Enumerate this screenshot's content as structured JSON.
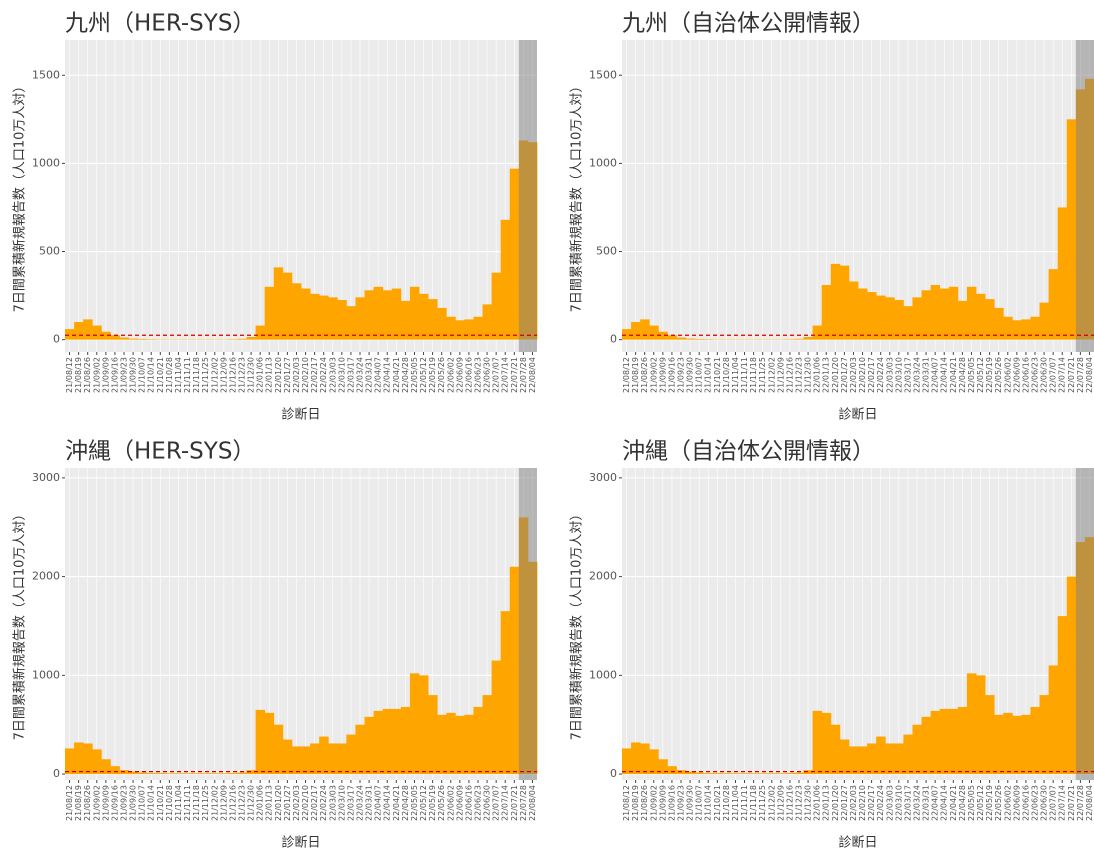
{
  "chart_data": [
    {
      "type": "area",
      "title": "九州（HER-SYS）",
      "xlabel": "診断日",
      "ylabel": "7日間累積新規報告数（人口10万人対）",
      "categories": [
        "21/08/12",
        "21/08/19",
        "21/08/26",
        "21/09/02",
        "21/09/09",
        "21/09/16",
        "21/09/23",
        "21/09/30",
        "21/10/07",
        "21/10/14",
        "21/10/21",
        "21/10/28",
        "21/11/04",
        "21/11/11",
        "21/11/18",
        "21/11/25",
        "21/12/02",
        "21/12/09",
        "21/12/16",
        "21/12/23",
        "21/12/30",
        "22/01/06",
        "22/01/13",
        "22/01/20",
        "22/01/27",
        "22/02/03",
        "22/02/10",
        "22/02/17",
        "22/02/24",
        "22/03/03",
        "22/03/10",
        "22/03/17",
        "22/03/24",
        "22/03/31",
        "22/04/07",
        "22/04/14",
        "22/04/21",
        "22/04/28",
        "22/05/05",
        "22/05/12",
        "22/05/19",
        "22/05/26",
        "22/06/02",
        "22/06/09",
        "22/06/16",
        "22/06/23",
        "22/06/30",
        "22/07/07",
        "22/07/14",
        "22/07/21",
        "22/07/28",
        "22/08/04"
      ],
      "values": [
        60,
        100,
        115,
        80,
        45,
        25,
        12,
        6,
        4,
        3,
        2,
        2,
        2,
        2,
        2,
        2,
        2,
        2,
        3,
        5,
        15,
        80,
        300,
        410,
        380,
        320,
        290,
        260,
        250,
        240,
        225,
        190,
        240,
        280,
        300,
        280,
        290,
        220,
        300,
        260,
        230,
        180,
        130,
        110,
        115,
        130,
        200,
        380,
        680,
        970,
        1130,
        1120
      ],
      "color": "#FFA500",
      "ylim": [
        -70,
        1700
      ],
      "yticks": [
        0,
        500,
        1000,
        1500
      ],
      "threshold": 25,
      "threshold_color": "#cc0000",
      "shade_from": "22/07/28",
      "shade_color": "#808080"
    },
    {
      "type": "area",
      "title": "九州（自治体公開情報）",
      "xlabel": "診断日",
      "ylabel": "7日間累積新規報告数（人口10万人対）",
      "categories": [
        "21/08/12",
        "21/08/19",
        "21/08/26",
        "21/09/02",
        "21/09/09",
        "21/09/16",
        "21/09/23",
        "21/09/30",
        "21/10/07",
        "21/10/14",
        "21/10/21",
        "21/10/28",
        "21/11/04",
        "21/11/11",
        "21/11/18",
        "21/11/25",
        "21/12/02",
        "21/12/09",
        "21/12/16",
        "21/12/23",
        "21/12/30",
        "22/01/06",
        "22/01/13",
        "22/01/20",
        "22/01/27",
        "22/02/03",
        "22/02/10",
        "22/02/17",
        "22/02/24",
        "22/03/03",
        "22/03/10",
        "22/03/17",
        "22/03/24",
        "22/03/31",
        "22/04/07",
        "22/04/14",
        "22/04/21",
        "22/04/28",
        "22/05/05",
        "22/05/12",
        "22/05/19",
        "22/05/26",
        "22/06/02",
        "22/06/09",
        "22/06/16",
        "22/06/23",
        "22/06/30",
        "22/07/07",
        "22/07/14",
        "22/07/21",
        "22/07/28",
        "22/08/04"
      ],
      "values": [
        60,
        100,
        115,
        80,
        45,
        25,
        12,
        6,
        4,
        3,
        2,
        2,
        2,
        2,
        2,
        2,
        2,
        2,
        3,
        5,
        15,
        80,
        310,
        430,
        420,
        330,
        290,
        270,
        250,
        240,
        225,
        190,
        240,
        280,
        310,
        290,
        300,
        220,
        300,
        260,
        230,
        180,
        130,
        110,
        115,
        130,
        210,
        400,
        750,
        1250,
        1420,
        1480
      ],
      "color": "#FFA500",
      "ylim": [
        -70,
        1700
      ],
      "yticks": [
        0,
        500,
        1000,
        1500
      ],
      "threshold": 25,
      "threshold_color": "#cc0000",
      "shade_from": "22/07/28",
      "shade_color": "#808080"
    },
    {
      "type": "area",
      "title": "沖縄（HER-SYS）",
      "xlabel": "診断日",
      "ylabel": "7日間累積新規報告数（人口10万人対）",
      "categories": [
        "21/08/12",
        "21/08/19",
        "21/08/26",
        "21/09/02",
        "21/09/09",
        "21/09/16",
        "21/09/23",
        "21/09/30",
        "21/10/07",
        "21/10/14",
        "21/10/21",
        "21/10/28",
        "21/11/04",
        "21/11/11",
        "21/11/18",
        "21/11/25",
        "21/12/02",
        "21/12/09",
        "21/12/16",
        "21/12/23",
        "21/12/30",
        "22/01/06",
        "22/01/13",
        "22/01/20",
        "22/01/27",
        "22/02/03",
        "22/02/10",
        "22/02/17",
        "22/02/24",
        "22/03/03",
        "22/03/10",
        "22/03/17",
        "22/03/24",
        "22/03/31",
        "22/04/07",
        "22/04/14",
        "22/04/21",
        "22/04/28",
        "22/05/05",
        "22/05/12",
        "22/05/19",
        "22/05/26",
        "22/06/02",
        "22/06/09",
        "22/06/16",
        "22/06/23",
        "22/06/30",
        "22/07/07",
        "22/07/14",
        "22/07/21",
        "22/07/28",
        "22/08/04"
      ],
      "values": [
        260,
        320,
        310,
        250,
        150,
        80,
        40,
        25,
        15,
        10,
        10,
        8,
        8,
        8,
        8,
        8,
        8,
        8,
        10,
        15,
        40,
        650,
        620,
        500,
        350,
        280,
        280,
        310,
        380,
        310,
        310,
        400,
        500,
        580,
        640,
        660,
        660,
        680,
        1020,
        1000,
        800,
        600,
        620,
        590,
        600,
        680,
        800,
        1150,
        1650,
        2100,
        2600,
        2150
      ],
      "color": "#FFA500",
      "ylim": [
        -60,
        3100
      ],
      "yticks": [
        0,
        1000,
        2000,
        3000
      ],
      "threshold": 25,
      "threshold_color": "#cc0000",
      "shade_from": "22/07/28",
      "shade_color": "#808080"
    },
    {
      "type": "area",
      "title": "沖縄（自治体公開情報）",
      "xlabel": "診断日",
      "ylabel": "7日間累積新規報告数（人口10万人対）",
      "categories": [
        "21/08/12",
        "21/08/19",
        "21/08/26",
        "21/09/02",
        "21/09/09",
        "21/09/16",
        "21/09/23",
        "21/09/30",
        "21/10/07",
        "21/10/14",
        "21/10/21",
        "21/10/28",
        "21/11/04",
        "21/11/11",
        "21/11/18",
        "21/11/25",
        "21/12/02",
        "21/12/09",
        "21/12/16",
        "21/12/23",
        "21/12/30",
        "22/01/06",
        "22/01/13",
        "22/01/20",
        "22/01/27",
        "22/02/03",
        "22/02/10",
        "22/02/17",
        "22/02/24",
        "22/03/03",
        "22/03/10",
        "22/03/17",
        "22/03/24",
        "22/03/31",
        "22/04/07",
        "22/04/14",
        "22/04/21",
        "22/04/28",
        "22/05/05",
        "22/05/12",
        "22/05/19",
        "22/05/26",
        "22/06/02",
        "22/06/09",
        "22/06/16",
        "22/06/23",
        "22/06/30",
        "22/07/07",
        "22/07/14",
        "22/07/21",
        "22/07/28",
        "22/08/04"
      ],
      "values": [
        260,
        320,
        310,
        250,
        150,
        80,
        40,
        25,
        15,
        10,
        10,
        8,
        8,
        8,
        8,
        8,
        8,
        8,
        10,
        15,
        40,
        640,
        620,
        500,
        350,
        280,
        280,
        310,
        380,
        310,
        310,
        400,
        500,
        580,
        640,
        660,
        660,
        680,
        1020,
        1000,
        800,
        600,
        620,
        590,
        600,
        680,
        800,
        1100,
        1600,
        2000,
        2350,
        2400
      ],
      "color": "#FFA500",
      "ylim": [
        -60,
        3100
      ],
      "yticks": [
        0,
        1000,
        2000,
        3000
      ],
      "threshold": 25,
      "threshold_color": "#cc0000",
      "shade_from": "22/07/28",
      "shade_color": "#808080"
    }
  ]
}
